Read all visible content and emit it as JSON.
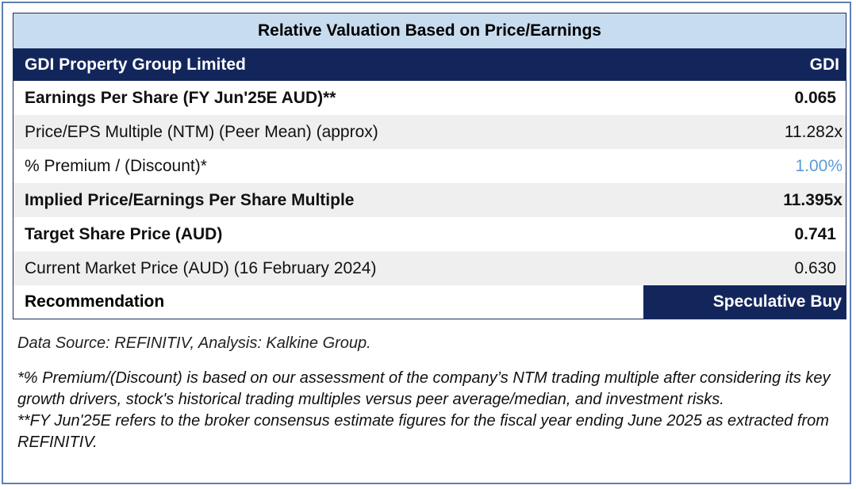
{
  "table": {
    "title": "Relative Valuation Based on Price/Earnings",
    "company": "GDI Property Group Limited",
    "ticker": "GDI",
    "rows": [
      {
        "label": "Earnings Per Share (FY Jun'25E AUD)**",
        "value": "0.065"
      },
      {
        "label": "Price/EPS Multiple (NTM) (Peer Mean) (approx)",
        "value": "11.282x"
      },
      {
        "label": "% Premium / (Discount)*",
        "value": "1.00%"
      },
      {
        "label": "Implied Price/Earnings Per Share Multiple",
        "value": "11.395x"
      },
      {
        "label": "Target Share Price (AUD)",
        "value": "0.741"
      },
      {
        "label": "Current Market Price (AUD) (16 February 2024)",
        "value": "0.630"
      }
    ],
    "recommendation_label": "Recommendation",
    "recommendation_value": "Speculative Buy"
  },
  "source": "Data Source: REFINITIV, Analysis: Kalkine Group.",
  "notes": [
    "*% Premium/(Discount) is based on our assessment of the company’s NTM trading multiple after considering its key growth drivers, stock's historical trading multiples versus peer average/median, and investment risks.",
    "**FY Jun'25E refers to the broker consensus estimate figures for the fiscal year ending June 2025 as extracted from REFINITIV."
  ],
  "colors": {
    "header_navy": "#13265c",
    "title_bg": "#c8dcef",
    "premium_blue": "#5b9bd5",
    "frame_border": "#5b7fb5"
  }
}
